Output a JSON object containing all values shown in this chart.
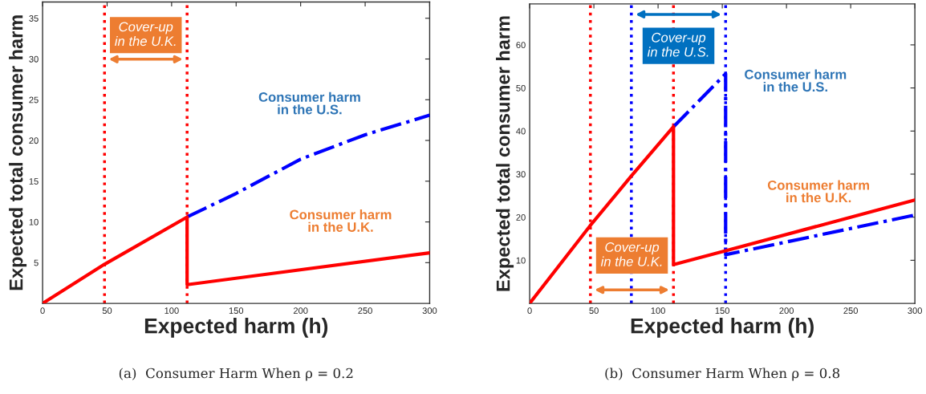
{
  "chart_data": [
    {
      "type": "line",
      "xlabel": "Expected harm (h)",
      "ylabel": "Expected total consumer harm",
      "xlim": [
        0,
        300
      ],
      "xticks": [
        0,
        50,
        100,
        150,
        200,
        250,
        300
      ],
      "ylim": [
        0,
        37
      ],
      "yticks": [
        5,
        10,
        15,
        20,
        25,
        30,
        35
      ],
      "grid": false,
      "series": [
        {
          "name": "Consumer harm in the U.K.",
          "color": "#ff0000",
          "line_style": "solid",
          "x": [
            0,
            48,
            112,
            112,
            300
          ],
          "values": [
            0,
            4.8,
            10.6,
            2.3,
            6.2
          ]
        },
        {
          "name": "Consumer harm in the U.S.",
          "color": "#0000ff",
          "line_style": "dashed",
          "x": [
            112,
            150,
            200,
            250,
            300
          ],
          "values": [
            10.6,
            13.5,
            17.7,
            20.7,
            23.1
          ]
        }
      ],
      "ref_lines": [
        {
          "axis": "x",
          "value": 48,
          "color": "#ff0000",
          "line_style": "dotted"
        },
        {
          "axis": "x",
          "value": 112,
          "color": "#ff0000",
          "line_style": "dotted"
        }
      ],
      "annotations": [
        "(a)  Consumer Harm When ρ = 0.2",
        "Cover-up\nin the U.K."
      ]
    },
    {
      "type": "line",
      "xlabel": "Expected harm (h)",
      "ylabel": "Expected total consumer harm",
      "xlim": [
        0,
        300
      ],
      "xticks": [
        0,
        50,
        100,
        150,
        200,
        250,
        300
      ],
      "ylim": [
        0,
        69.5
      ],
      "yticks": [
        10,
        20,
        30,
        40,
        50,
        60
      ],
      "grid": false,
      "series": [
        {
          "name": "Consumer harm in the U.K.",
          "color": "#ff0000",
          "line_style": "solid",
          "x": [
            0,
            47,
            79,
            112,
            112,
            152.6,
            300
          ],
          "values": [
            0,
            18,
            29.5,
            41,
            9,
            12.2,
            24
          ]
        },
        {
          "name": "Consumer harm in the U.S.",
          "color": "#0000ff",
          "line_style": "dashed",
          "x": [
            112,
            152.6,
            152.6,
            300
          ],
          "values": [
            41,
            53.3,
            11.3,
            20.5
          ]
        }
      ],
      "ref_lines": [
        {
          "axis": "x",
          "value": 47.3,
          "color": "#ff0000",
          "line_style": "dotted"
        },
        {
          "axis": "x",
          "value": 79.2,
          "color": "#0000ff",
          "line_style": "dotted"
        },
        {
          "axis": "x",
          "value": 112,
          "color": "#ff0000",
          "line_style": "dotted"
        },
        {
          "axis": "x",
          "value": 152.6,
          "color": "#0000ff",
          "line_style": "dotted"
        }
      ],
      "annotations": [
        "(b)  Consumer Harm When ρ = 0.8",
        "Cover-up\nin the U.S.",
        "Cover-up\nin the U.K."
      ]
    }
  ]
}
